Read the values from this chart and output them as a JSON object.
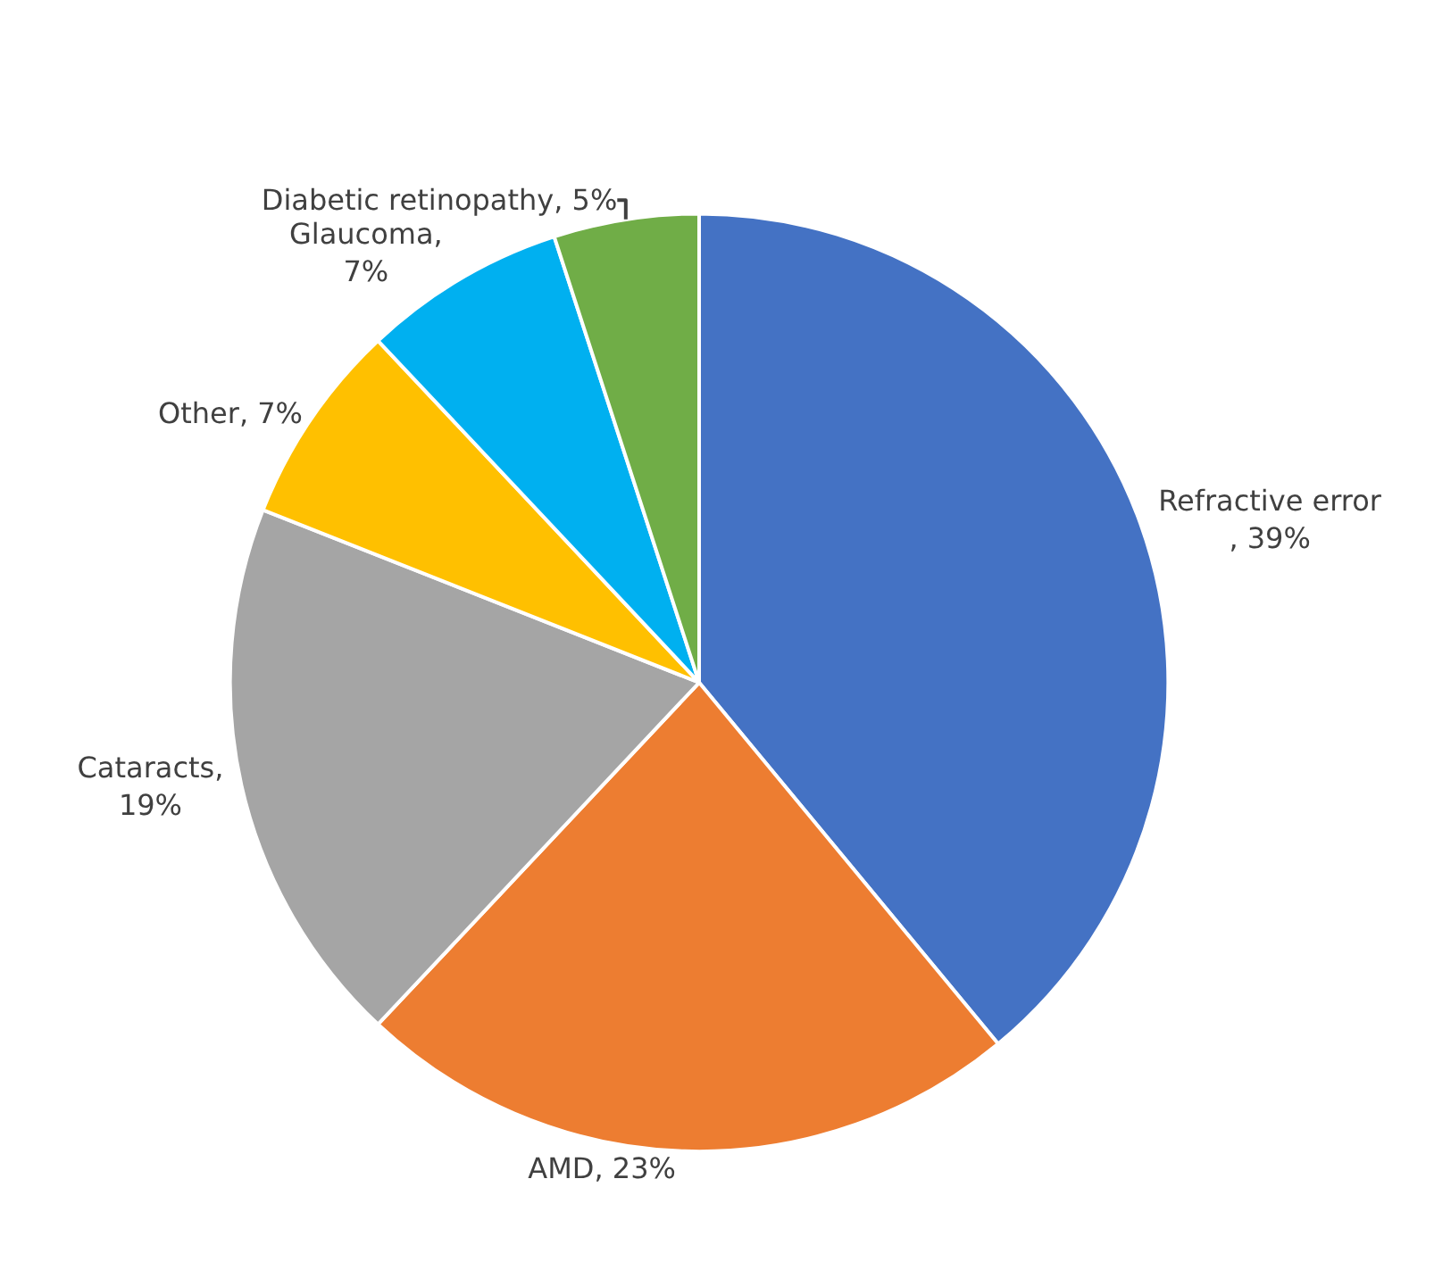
{
  "chart_data": {
    "type": "pie",
    "categories": [
      "Refractive error",
      "AMD",
      "Cataracts",
      "Other",
      "Glaucoma",
      "Diabetic retinopathy"
    ],
    "values": [
      39,
      23,
      19,
      7,
      7,
      5
    ],
    "colors": [
      "#4472c4",
      "#ed7d31",
      "#a5a5a5",
      "#ffc000",
      "#00b0f0",
      "#70ad47"
    ],
    "value_labels": [
      "\n, 39%",
      ", 23%",
      ",\n19%",
      ", 7%",
      ",\n7%",
      ", 5%"
    ],
    "legend": false
  }
}
